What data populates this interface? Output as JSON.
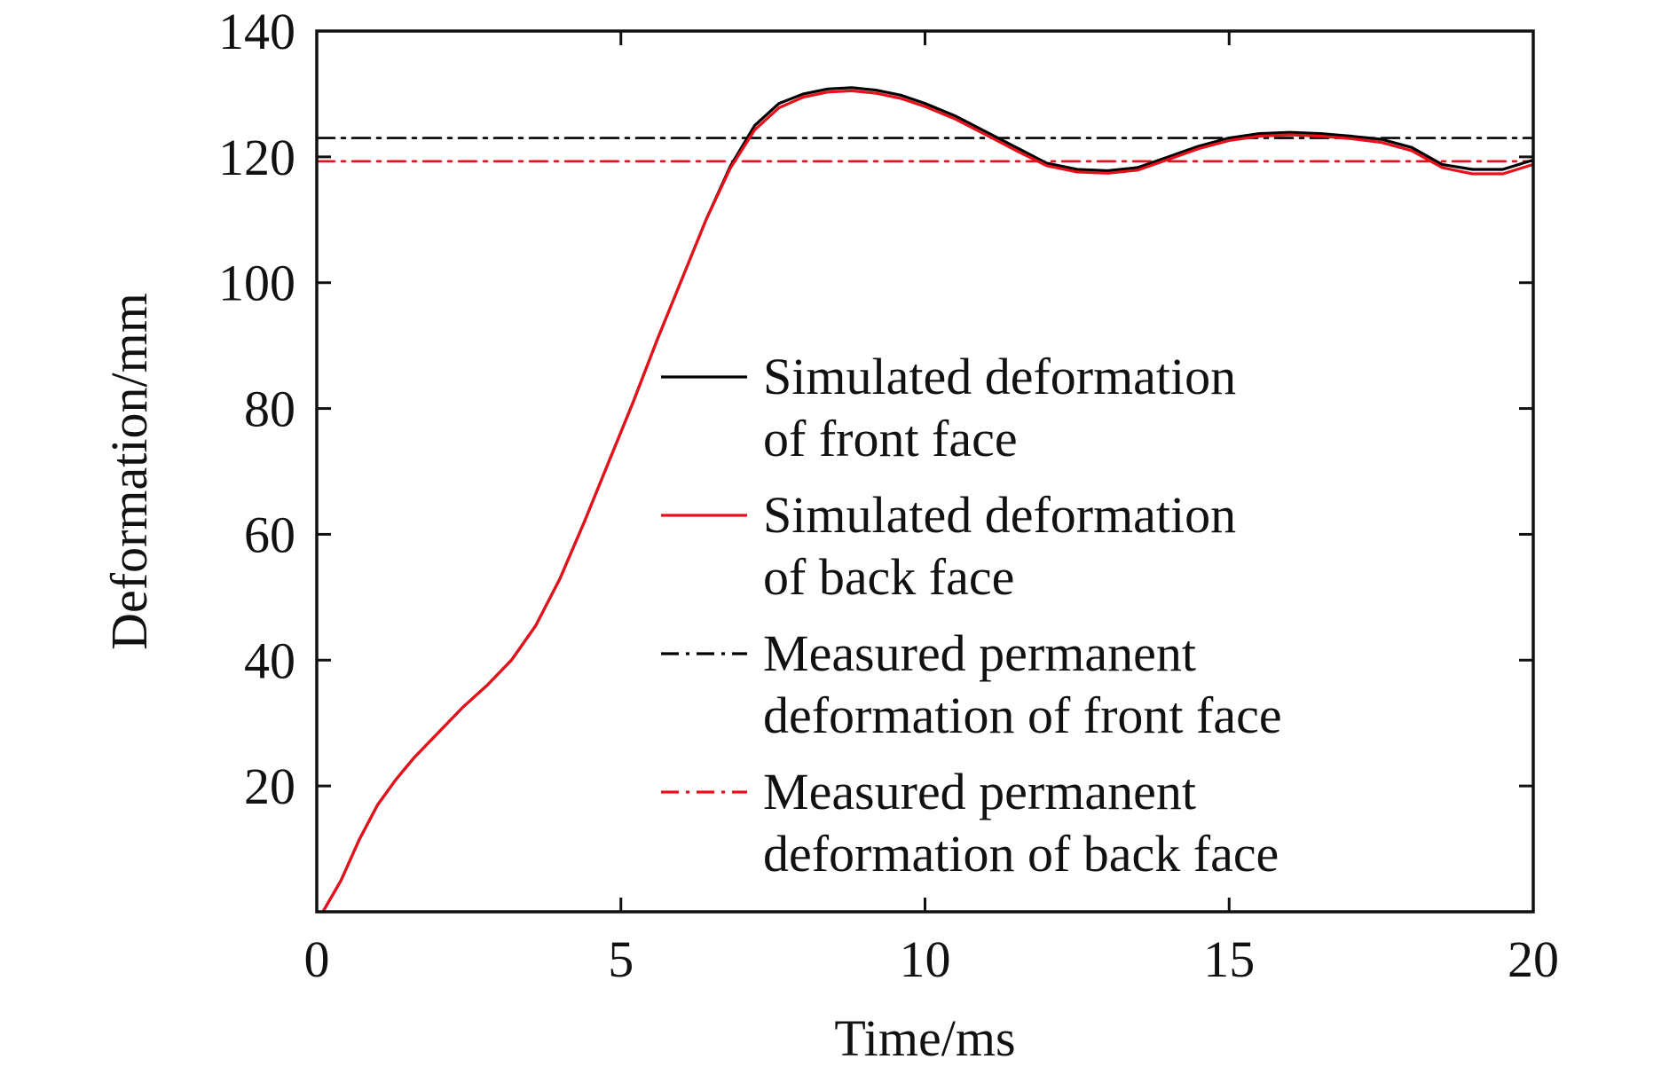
{
  "chart_data": {
    "type": "line",
    "title": "",
    "xlabel": "Time/ms",
    "ylabel": "Deformation/mm",
    "xlim": [
      0,
      20
    ],
    "ylim": [
      0,
      140
    ],
    "x_ticks": [
      0,
      5,
      10,
      15,
      20
    ],
    "x_tick_labels": [
      "0",
      "5",
      "10",
      "15",
      "20"
    ],
    "y_ticks": [
      20,
      40,
      60,
      80,
      100,
      120,
      140
    ],
    "y_tick_labels": [
      "20",
      "40",
      "60",
      "80",
      "100",
      "120",
      "140"
    ],
    "grid": false,
    "legend_position": "center-right",
    "series": [
      {
        "name": "Simulated deformation of front face",
        "legend_lines": [
          "Simulated deformation",
          "of front face"
        ],
        "color": "#000000",
        "style": "solid",
        "x": [
          0.1,
          0.4,
          0.7,
          1.0,
          1.3,
          1.6,
          2.0,
          2.4,
          2.8,
          3.2,
          3.6,
          4.0,
          4.4,
          4.8,
          5.2,
          5.6,
          6.0,
          6.4,
          6.8,
          7.2,
          7.6,
          8.0,
          8.4,
          8.8,
          9.2,
          9.6,
          10.0,
          10.5,
          11.0,
          11.5,
          12.0,
          12.5,
          13.0,
          13.5,
          14.0,
          14.5,
          15.0,
          15.5,
          16.0,
          16.5,
          17.0,
          17.5,
          18.0,
          18.5,
          19.0,
          19.5,
          20.0
        ],
        "y": [
          0.0,
          5.0,
          11.5,
          17.0,
          21.0,
          24.5,
          28.5,
          32.5,
          36.0,
          40.0,
          45.5,
          53.0,
          62.0,
          71.5,
          81.0,
          91.0,
          100.5,
          110.0,
          118.5,
          125.0,
          128.5,
          130.0,
          130.8,
          131.0,
          130.6,
          129.8,
          128.5,
          126.5,
          124.0,
          121.5,
          119.0,
          118.0,
          117.8,
          118.3,
          120.0,
          121.7,
          123.0,
          123.7,
          123.9,
          123.7,
          123.3,
          122.8,
          121.5,
          118.8,
          118.0,
          118.0,
          119.5
        ]
      },
      {
        "name": "Simulated deformation of back face",
        "legend_lines": [
          "Simulated deformation",
          "of back face"
        ],
        "color": "#e8111b",
        "style": "solid",
        "x": [
          0.1,
          0.4,
          0.7,
          1.0,
          1.3,
          1.6,
          2.0,
          2.4,
          2.8,
          3.2,
          3.6,
          4.0,
          4.4,
          4.8,
          5.2,
          5.6,
          6.0,
          6.4,
          6.8,
          7.2,
          7.6,
          8.0,
          8.4,
          8.8,
          9.2,
          9.6,
          10.0,
          10.5,
          11.0,
          11.5,
          12.0,
          12.5,
          13.0,
          13.5,
          14.0,
          14.5,
          15.0,
          15.5,
          16.0,
          16.5,
          17.0,
          17.5,
          18.0,
          18.5,
          19.0,
          19.5,
          20.0
        ],
        "y": [
          0.0,
          5.0,
          11.5,
          17.0,
          21.0,
          24.5,
          28.5,
          32.5,
          36.0,
          40.0,
          45.5,
          53.0,
          62.0,
          71.5,
          81.0,
          91.0,
          100.5,
          110.0,
          118.2,
          124.3,
          127.8,
          129.5,
          130.3,
          130.5,
          130.1,
          129.3,
          128.0,
          126.0,
          123.5,
          121.0,
          118.6,
          117.6,
          117.4,
          117.9,
          119.6,
          121.3,
          122.6,
          123.3,
          123.5,
          123.3,
          122.9,
          122.3,
          121.0,
          118.3,
          117.3,
          117.3,
          118.8
        ]
      },
      {
        "name": "Measured permanent deformation of front face",
        "legend_lines": [
          "Measured permanent",
          "deformation of front face"
        ],
        "color": "#000000",
        "style": "dashdot",
        "x": [
          0,
          20
        ],
        "y": [
          123.0,
          123.0
        ]
      },
      {
        "name": "Measured permanent deformation of back face",
        "legend_lines": [
          "Measured permanent",
          "deformation of back face"
        ],
        "color": "#e8111b",
        "style": "dashdot",
        "x": [
          0,
          20
        ],
        "y": [
          119.3,
          119.3
        ]
      }
    ]
  }
}
